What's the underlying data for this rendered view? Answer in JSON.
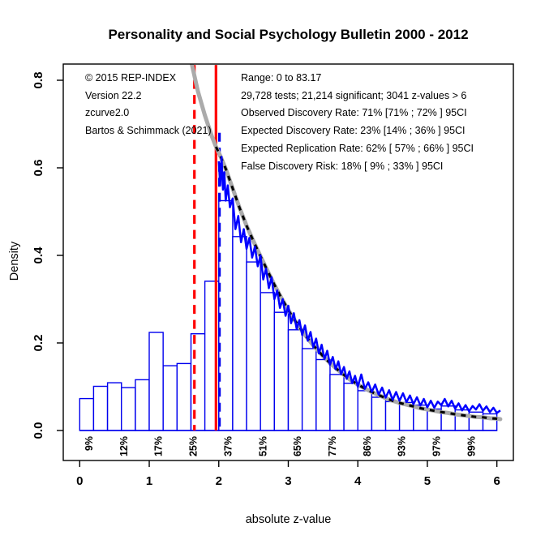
{
  "title": "Personality and Social Psychology Bulletin 2000 - 2012",
  "annotations": {
    "left": [
      "© 2015 REP-INDEX",
      "Version 22.2",
      "zcurve2.0",
      "Bartos & Schimmack (2021)"
    ],
    "right": [
      "Range: 0 to 83.17",
      "29,728 tests; 21,214 significant; 3041 z-values > 6",
      "Observed Discovery Rate: 71% [71% ; 72% ] 95CI",
      "Expected Discovery Rate: 23% [14% ; 36% ] 95CI",
      "Expected Replication Rate: 62% [ 57% ; 66% ] 95CI",
      "False Discovery Risk: 18% [ 9% ; 33% ] 95CI"
    ]
  },
  "chart_data": {
    "type": "bar",
    "subtype": "z-curve histogram with fitted density curves",
    "title": "Personality and Social Psychology Bulletin 2000 - 2012",
    "xlabel": "absolute z-value",
    "ylabel": "Density",
    "xlim": [
      0,
      6
    ],
    "ylim": [
      0,
      0.84
    ],
    "grid": false,
    "x_ticks": [
      0,
      1,
      2,
      3,
      4,
      5,
      6
    ],
    "x_tick_labels": [
      "0",
      "1",
      "2",
      "3",
      "4",
      "5",
      "6"
    ],
    "y_ticks": [
      0,
      0.2,
      0.4,
      0.6,
      0.8
    ],
    "y_tick_labels": [
      "0.0",
      "0.2",
      "0.4",
      "0.6",
      "0.8"
    ],
    "histogram": {
      "bin_start": 0,
      "bin_width": 0.2,
      "heights": [
        0.073,
        0.101,
        0.109,
        0.098,
        0.116,
        0.224,
        0.148,
        0.153,
        0.221,
        0.341,
        0.525,
        0.443,
        0.385,
        0.315,
        0.27,
        0.23,
        0.187,
        0.162,
        0.128,
        0.108,
        0.091,
        0.076,
        0.066,
        0.064,
        0.058,
        0.049,
        0.056,
        0.047,
        0.042,
        0.038
      ]
    },
    "power_labels": [
      {
        "z": 0.13,
        "label": "9%"
      },
      {
        "z": 0.63,
        "label": "12%"
      },
      {
        "z": 1.13,
        "label": "17%"
      },
      {
        "z": 1.63,
        "label": "25%"
      },
      {
        "z": 2.13,
        "label": "37%"
      },
      {
        "z": 2.63,
        "label": "51%"
      },
      {
        "z": 3.13,
        "label": "65%"
      },
      {
        "z": 3.63,
        "label": "77%"
      },
      {
        "z": 4.13,
        "label": "86%"
      },
      {
        "z": 4.63,
        "label": "93%"
      },
      {
        "z": 5.13,
        "label": "97%"
      },
      {
        "z": 5.63,
        "label": "99%"
      }
    ],
    "vlines": [
      {
        "z": 1.65,
        "style": "dashed",
        "color": "#FF0000",
        "ymax": 0.835
      },
      {
        "z": 1.96,
        "style": "solid",
        "color": "#FF0000",
        "ymax": 0.835
      },
      {
        "z": 2.01,
        "style": "dashed",
        "color": "#0000EE",
        "ymax": 0.68
      }
    ],
    "fit_curve_gray": [
      [
        1.6,
        0.845
      ],
      [
        1.7,
        0.775
      ],
      [
        1.8,
        0.72
      ],
      [
        1.9,
        0.672
      ],
      [
        1.96,
        0.648
      ],
      [
        2.02,
        0.628
      ],
      [
        2.1,
        0.598
      ],
      [
        2.2,
        0.553
      ],
      [
        2.3,
        0.508
      ],
      [
        2.4,
        0.468
      ],
      [
        2.5,
        0.432
      ],
      [
        2.6,
        0.398
      ],
      [
        2.7,
        0.365
      ],
      [
        2.8,
        0.333
      ],
      [
        2.9,
        0.303
      ],
      [
        3.0,
        0.275
      ],
      [
        3.1,
        0.25
      ],
      [
        3.2,
        0.227
      ],
      [
        3.3,
        0.206
      ],
      [
        3.4,
        0.187
      ],
      [
        3.5,
        0.17
      ],
      [
        3.6,
        0.154
      ],
      [
        3.7,
        0.14
      ],
      [
        3.8,
        0.127
      ],
      [
        3.9,
        0.115
      ],
      [
        4.0,
        0.105
      ],
      [
        4.1,
        0.096
      ],
      [
        4.2,
        0.088
      ],
      [
        4.3,
        0.081
      ],
      [
        4.4,
        0.074
      ],
      [
        4.5,
        0.068
      ],
      [
        4.6,
        0.063
      ],
      [
        4.7,
        0.059
      ],
      [
        4.8,
        0.055
      ],
      [
        4.9,
        0.051
      ],
      [
        5.0,
        0.048
      ],
      [
        5.1,
        0.045
      ],
      [
        5.2,
        0.042
      ],
      [
        5.3,
        0.04
      ],
      [
        5.4,
        0.037
      ],
      [
        5.5,
        0.035
      ],
      [
        5.6,
        0.033
      ],
      [
        5.7,
        0.031
      ],
      [
        5.8,
        0.03
      ],
      [
        5.9,
        0.028
      ],
      [
        6.0,
        0.027
      ],
      [
        6.05,
        0.026
      ]
    ],
    "fit_curve_black_dotted_from_z": 1.96,
    "density_curve_blue": [
      [
        2.0,
        0.615
      ],
      [
        2.02,
        0.56
      ],
      [
        2.04,
        0.625
      ],
      [
        2.06,
        0.55
      ],
      [
        2.08,
        0.59
      ],
      [
        2.1,
        0.525
      ],
      [
        2.13,
        0.56
      ],
      [
        2.16,
        0.51
      ],
      [
        2.2,
        0.53
      ],
      [
        2.24,
        0.46
      ],
      [
        2.28,
        0.49
      ],
      [
        2.32,
        0.43
      ],
      [
        2.36,
        0.46
      ],
      [
        2.4,
        0.415
      ],
      [
        2.44,
        0.44
      ],
      [
        2.48,
        0.395
      ],
      [
        2.52,
        0.42
      ],
      [
        2.56,
        0.375
      ],
      [
        2.6,
        0.4
      ],
      [
        2.64,
        0.345
      ],
      [
        2.68,
        0.37
      ],
      [
        2.72,
        0.325
      ],
      [
        2.76,
        0.35
      ],
      [
        2.8,
        0.3
      ],
      [
        2.84,
        0.32
      ],
      [
        2.88,
        0.28
      ],
      [
        2.92,
        0.3
      ],
      [
        2.96,
        0.262
      ],
      [
        3.0,
        0.285
      ],
      [
        3.04,
        0.245
      ],
      [
        3.08,
        0.268
      ],
      [
        3.12,
        0.232
      ],
      [
        3.16,
        0.252
      ],
      [
        3.2,
        0.218
      ],
      [
        3.24,
        0.24
      ],
      [
        3.28,
        0.205
      ],
      [
        3.32,
        0.225
      ],
      [
        3.36,
        0.19
      ],
      [
        3.4,
        0.21
      ],
      [
        3.44,
        0.176
      ],
      [
        3.48,
        0.196
      ],
      [
        3.52,
        0.163
      ],
      [
        3.56,
        0.182
      ],
      [
        3.6,
        0.15
      ],
      [
        3.64,
        0.168
      ],
      [
        3.68,
        0.14
      ],
      [
        3.72,
        0.158
      ],
      [
        3.76,
        0.128
      ],
      [
        3.8,
        0.145
      ],
      [
        3.84,
        0.118
      ],
      [
        3.88,
        0.135
      ],
      [
        3.92,
        0.108
      ],
      [
        3.96,
        0.125
      ],
      [
        4.0,
        0.1
      ],
      [
        4.05,
        0.128
      ],
      [
        4.1,
        0.095
      ],
      [
        4.15,
        0.11
      ],
      [
        4.2,
        0.088
      ],
      [
        4.25,
        0.105
      ],
      [
        4.3,
        0.082
      ],
      [
        4.35,
        0.098
      ],
      [
        4.4,
        0.075
      ],
      [
        4.45,
        0.092
      ],
      [
        4.5,
        0.07
      ],
      [
        4.55,
        0.088
      ],
      [
        4.6,
        0.068
      ],
      [
        4.65,
        0.085
      ],
      [
        4.7,
        0.065
      ],
      [
        4.75,
        0.08
      ],
      [
        4.8,
        0.06
      ],
      [
        4.85,
        0.076
      ],
      [
        4.9,
        0.057
      ],
      [
        4.95,
        0.072
      ],
      [
        5.0,
        0.053
      ],
      [
        5.05,
        0.068
      ],
      [
        5.1,
        0.052
      ],
      [
        5.15,
        0.066
      ],
      [
        5.2,
        0.058
      ],
      [
        5.25,
        0.072
      ],
      [
        5.3,
        0.055
      ],
      [
        5.35,
        0.068
      ],
      [
        5.4,
        0.05
      ],
      [
        5.45,
        0.062
      ],
      [
        5.5,
        0.046
      ],
      [
        5.55,
        0.058
      ],
      [
        5.6,
        0.044
      ],
      [
        5.65,
        0.056
      ],
      [
        5.7,
        0.048
      ],
      [
        5.75,
        0.06
      ],
      [
        5.8,
        0.045
      ],
      [
        5.85,
        0.055
      ],
      [
        5.9,
        0.042
      ],
      [
        5.95,
        0.052
      ],
      [
        6.0,
        0.04
      ],
      [
        6.05,
        0.046
      ]
    ],
    "colors": {
      "histogram_border": "#0000EE",
      "density_curve": "#0000FF",
      "fit_curve": "#ABABAB",
      "fit_curve_dotted": "#000000",
      "significance_line": "#FF0000",
      "axis": "#000000"
    }
  }
}
